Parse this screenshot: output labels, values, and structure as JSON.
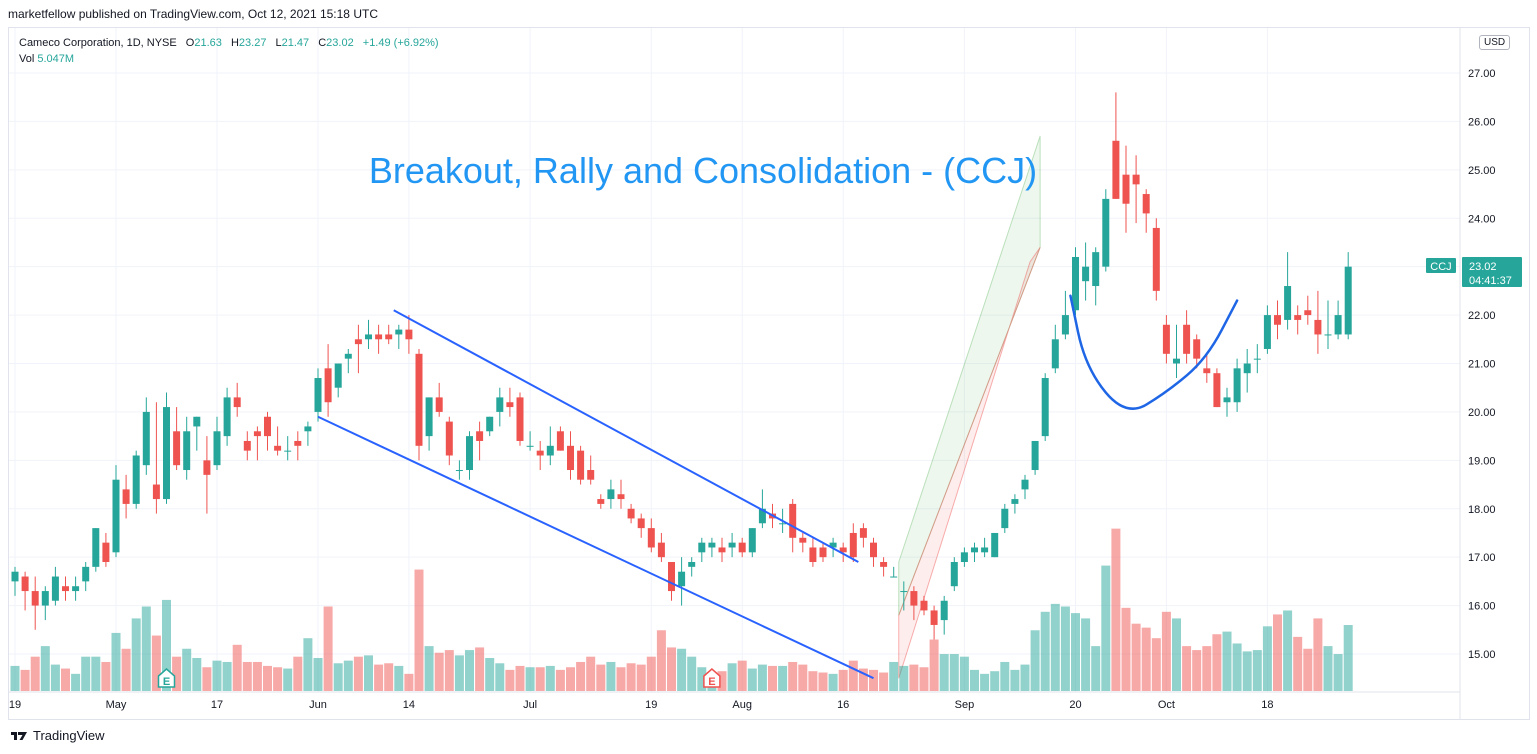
{
  "header": {
    "published_line": "marketfellow published on TradingView.com, Oct 12, 2021 15:18 UTC"
  },
  "legend": {
    "symbol": "Cameco Corporation, 1D, NYSE",
    "o_label": "O",
    "o_value": "21.63",
    "h_label": "H",
    "h_value": "23.27",
    "l_label": "L",
    "l_value": "21.47",
    "c_label": "C",
    "c_value": "23.02",
    "change": "+1.49 (+6.92%)",
    "vol_label": "Vol",
    "vol_value": "5.047M"
  },
  "currency": "USD",
  "footer": {
    "brand": "TradingView"
  },
  "colors": {
    "up": "#26a69a",
    "down": "#ef5350",
    "up_vol": "#26a69a",
    "down_vol": "#ef5350",
    "annotation_blue": "#2962ff",
    "title_blue": "#2196f3"
  },
  "chart_data": {
    "type": "candlestick",
    "title": "Breakout, Rally and Consolidation - (CCJ)",
    "ylim": [
      14.3,
      27.5
    ],
    "y_ticks": [
      "15.00",
      "16.00",
      "17.00",
      "18.00",
      "19.00",
      "20.00",
      "21.00",
      "22.00",
      "23.00",
      "24.00",
      "25.00",
      "26.00",
      "27.00"
    ],
    "x_ticks": [
      {
        "label": "19",
        "index": 0
      },
      {
        "label": "May",
        "index": 10
      },
      {
        "label": "17",
        "index": 20
      },
      {
        "label": "Jun",
        "index": 30
      },
      {
        "label": "14",
        "index": 39
      },
      {
        "label": "Jul",
        "index": 51
      },
      {
        "label": "19",
        "index": 63
      },
      {
        "label": "Aug",
        "index": 72
      },
      {
        "label": "16",
        "index": 82
      },
      {
        "label": "Sep",
        "index": 94
      },
      {
        "label": "20",
        "index": 105
      },
      {
        "label": "Oct",
        "index": 114
      },
      {
        "label": "18",
        "index": 124
      }
    ],
    "candles": [
      [
        16.5,
        16.8,
        16.2,
        16.7,
        1.9
      ],
      [
        16.6,
        16.7,
        15.9,
        16.3,
        1.6
      ],
      [
        16.3,
        16.6,
        15.5,
        16.0,
        2.6
      ],
      [
        16.0,
        16.4,
        15.7,
        16.3,
        3.4
      ],
      [
        16.1,
        16.8,
        16.0,
        16.6,
        2.0
      ],
      [
        16.4,
        16.6,
        16.1,
        16.3,
        1.7
      ],
      [
        16.3,
        16.6,
        16.1,
        16.4,
        1.3
      ],
      [
        16.5,
        16.9,
        16.3,
        16.8,
        2.6
      ],
      [
        16.8,
        17.6,
        16.7,
        17.6,
        2.6
      ],
      [
        17.3,
        17.5,
        16.8,
        16.9,
        2.2
      ],
      [
        17.1,
        18.9,
        17.0,
        18.6,
        4.4
      ],
      [
        18.4,
        18.7,
        17.8,
        18.1,
        3.2
      ],
      [
        18.1,
        19.2,
        18.0,
        19.1,
        5.5
      ],
      [
        18.9,
        20.3,
        18.7,
        20.0,
        6.4
      ],
      [
        18.5,
        20.2,
        17.9,
        18.2,
        4.2
      ],
      [
        18.2,
        20.4,
        18.1,
        20.1,
        6.9
      ],
      [
        19.6,
        20.1,
        18.8,
        18.9,
        2.6
      ],
      [
        18.8,
        19.9,
        18.6,
        19.6,
        3.2
      ],
      [
        19.7,
        19.9,
        19.2,
        19.9,
        2.5
      ],
      [
        19.0,
        19.5,
        17.9,
        18.7,
        1.8
      ],
      [
        18.9,
        19.9,
        18.8,
        19.6,
        2.3
      ],
      [
        19.5,
        20.5,
        19.3,
        20.3,
        2.2
      ],
      [
        20.3,
        20.6,
        19.9,
        20.1,
        3.5
      ],
      [
        19.4,
        19.6,
        19.0,
        19.2,
        2.2
      ],
      [
        19.6,
        19.7,
        19.0,
        19.5,
        2.2
      ],
      [
        19.9,
        20.0,
        19.2,
        19.5,
        1.9
      ],
      [
        19.3,
        19.7,
        19.1,
        19.2,
        1.8
      ],
      [
        19.2,
        19.5,
        19.0,
        19.2,
        1.7
      ],
      [
        19.4,
        19.6,
        19.0,
        19.3,
        2.6
      ],
      [
        19.6,
        19.8,
        19.3,
        19.7,
        4.0
      ],
      [
        20.0,
        20.9,
        19.8,
        20.7,
        2.5
      ],
      [
        20.9,
        21.4,
        19.9,
        20.2,
        6.4
      ],
      [
        20.5,
        21.0,
        20.3,
        21.0,
        2.1
      ],
      [
        21.1,
        21.3,
        20.8,
        21.2,
        2.3
      ],
      [
        21.5,
        21.8,
        20.8,
        21.4,
        2.6
      ],
      [
        21.5,
        21.9,
        21.3,
        21.6,
        2.7
      ],
      [
        21.6,
        21.8,
        21.2,
        21.5,
        2.0
      ],
      [
        21.6,
        21.8,
        21.4,
        21.5,
        2.1
      ],
      [
        21.6,
        21.8,
        21.3,
        21.7,
        1.9
      ],
      [
        21.7,
        22.0,
        21.2,
        21.5,
        1.3
      ],
      [
        21.2,
        21.3,
        19.0,
        19.3,
        9.2
      ],
      [
        19.5,
        20.3,
        19.2,
        20.3,
        3.4
      ],
      [
        20.3,
        20.6,
        19.9,
        20.0,
        2.9
      ],
      [
        19.8,
        19.9,
        18.9,
        19.1,
        3.1
      ],
      [
        18.8,
        19.0,
        18.6,
        18.8,
        2.7
      ],
      [
        18.8,
        19.6,
        18.6,
        19.5,
        3.1
      ],
      [
        19.6,
        19.8,
        19.0,
        19.4,
        3.3
      ],
      [
        19.6,
        19.9,
        19.5,
        19.9,
        2.5
      ],
      [
        20.0,
        20.5,
        19.7,
        20.3,
        2.1
      ],
      [
        20.2,
        20.5,
        19.9,
        20.1,
        1.6
      ],
      [
        20.3,
        20.4,
        19.3,
        19.4,
        1.9
      ],
      [
        19.3,
        19.6,
        19.2,
        19.3,
        1.8
      ],
      [
        19.2,
        19.4,
        18.8,
        19.1,
        1.8
      ],
      [
        19.1,
        19.7,
        18.9,
        19.3,
        1.9
      ],
      [
        19.6,
        19.7,
        19.2,
        19.2,
        1.6
      ],
      [
        19.3,
        19.6,
        18.6,
        18.8,
        1.8
      ],
      [
        19.2,
        19.3,
        18.5,
        18.6,
        2.2
      ],
      [
        18.8,
        19.1,
        18.5,
        18.6,
        2.6
      ],
      [
        18.2,
        18.3,
        18.0,
        18.1,
        2.0
      ],
      [
        18.2,
        18.6,
        18.0,
        18.4,
        2.2
      ],
      [
        18.3,
        18.6,
        18.0,
        18.2,
        1.8
      ],
      [
        18.0,
        18.1,
        17.7,
        17.8,
        2.1
      ],
      [
        17.8,
        17.9,
        17.4,
        17.6,
        2.0
      ],
      [
        17.6,
        17.8,
        17.1,
        17.2,
        2.6
      ],
      [
        17.3,
        17.5,
        16.9,
        17.0,
        4.6
      ],
      [
        16.9,
        16.9,
        16.1,
        16.3,
        3.3
      ],
      [
        16.4,
        17.0,
        16.0,
        16.7,
        3.2
      ],
      [
        16.8,
        17.0,
        16.6,
        16.9,
        2.6
      ],
      [
        17.1,
        17.4,
        16.9,
        17.3,
        1.8
      ],
      [
        17.2,
        17.4,
        17.0,
        17.3,
        1.2
      ],
      [
        17.2,
        17.4,
        16.9,
        17.1,
        1.5
      ],
      [
        17.2,
        17.5,
        17.0,
        17.3,
        2.1
      ],
      [
        17.3,
        17.4,
        17.0,
        17.1,
        2.3
      ],
      [
        17.1,
        17.6,
        17.0,
        17.6,
        1.7
      ],
      [
        17.7,
        18.4,
        17.6,
        18.0,
        2.0
      ],
      [
        17.9,
        18.1,
        17.6,
        17.8,
        1.9
      ],
      [
        17.7,
        18.0,
        17.5,
        17.7,
        1.9
      ],
      [
        18.1,
        18.2,
        17.1,
        17.4,
        2.2
      ],
      [
        17.4,
        17.5,
        17.1,
        17.3,
        2.0
      ],
      [
        17.2,
        17.4,
        16.8,
        16.9,
        1.5
      ],
      [
        17.2,
        17.3,
        16.9,
        17.0,
        1.4
      ],
      [
        17.2,
        17.4,
        17.0,
        17.3,
        1.3
      ],
      [
        17.2,
        17.3,
        16.9,
        17.1,
        1.6
      ],
      [
        17.5,
        17.7,
        16.9,
        17.0,
        2.3
      ],
      [
        17.6,
        17.7,
        17.2,
        17.4,
        1.7
      ],
      [
        17.3,
        17.4,
        16.8,
        17.0,
        1.6
      ],
      [
        16.9,
        17.0,
        16.6,
        16.8,
        1.4
      ],
      [
        16.6,
        16.8,
        16.6,
        16.6,
        2.2
      ],
      [
        16.3,
        16.5,
        15.9,
        16.3,
        1.9
      ],
      [
        16.3,
        16.4,
        15.7,
        16.0,
        2.0
      ],
      [
        16.1,
        16.2,
        15.8,
        15.9,
        1.8
      ],
      [
        15.9,
        16.0,
        15.3,
        15.6,
        3.9
      ],
      [
        15.7,
        16.2,
        15.4,
        16.1,
        2.8
      ],
      [
        16.4,
        17.0,
        16.3,
        16.9,
        2.8
      ],
      [
        16.9,
        17.2,
        16.8,
        17.1,
        2.6
      ],
      [
        17.1,
        17.3,
        16.9,
        17.2,
        1.6
      ],
      [
        17.1,
        17.4,
        17.0,
        17.2,
        1.3
      ],
      [
        17.0,
        17.5,
        17.0,
        17.5,
        1.5
      ],
      [
        17.6,
        18.1,
        17.5,
        18.0,
        2.2
      ],
      [
        18.1,
        18.3,
        17.9,
        18.2,
        1.6
      ],
      [
        18.4,
        18.7,
        18.2,
        18.6,
        2.0
      ],
      [
        18.8,
        19.4,
        18.7,
        19.4,
        4.6
      ],
      [
        19.5,
        20.8,
        19.4,
        20.7,
        6.0
      ],
      [
        20.9,
        21.8,
        20.8,
        21.5,
        6.6
      ],
      [
        21.6,
        22.5,
        21.5,
        22.0,
        6.4
      ],
      [
        22.1,
        23.4,
        22.0,
        23.2,
        5.9
      ],
      [
        22.7,
        23.5,
        22.3,
        23.0,
        5.5
      ],
      [
        22.6,
        23.4,
        22.2,
        23.3,
        3.4
      ],
      [
        23.0,
        24.6,
        22.9,
        24.4,
        9.5
      ],
      [
        25.6,
        26.6,
        24.4,
        24.4,
        12.3
      ],
      [
        24.9,
        25.5,
        23.7,
        24.3,
        6.3
      ],
      [
        24.9,
        25.3,
        23.9,
        24.7,
        5.1
      ],
      [
        24.5,
        24.6,
        23.7,
        24.1,
        4.8
      ],
      [
        23.8,
        24.0,
        22.3,
        22.5,
        4.0
      ],
      [
        21.8,
        22.0,
        21.0,
        21.2,
        6.0
      ],
      [
        21.0,
        21.8,
        20.7,
        21.1,
        5.5
      ],
      [
        21.8,
        22.1,
        21.0,
        21.2,
        3.4
      ],
      [
        21.5,
        21.6,
        20.9,
        21.1,
        3.1
      ],
      [
        20.9,
        21.2,
        20.6,
        20.8,
        3.4
      ],
      [
        20.8,
        20.9,
        20.1,
        20.1,
        4.3
      ],
      [
        20.2,
        20.5,
        19.9,
        20.3,
        4.5
      ],
      [
        20.2,
        21.1,
        20.0,
        20.9,
        3.6
      ],
      [
        20.8,
        21.3,
        20.4,
        21.0,
        3.0
      ],
      [
        21.1,
        21.4,
        20.8,
        21.1,
        3.1
      ],
      [
        21.3,
        22.2,
        21.2,
        22.0,
        4.9
      ],
      [
        22.0,
        22.3,
        21.5,
        21.8,
        5.8
      ],
      [
        21.9,
        23.3,
        21.7,
        22.6,
        6.1
      ],
      [
        22.0,
        22.2,
        21.6,
        21.9,
        4.1
      ],
      [
        22.1,
        22.4,
        21.8,
        22.0,
        3.2
      ],
      [
        21.9,
        22.5,
        21.2,
        21.6,
        5.5
      ],
      [
        21.6,
        22.3,
        21.3,
        21.6,
        3.4
      ],
      [
        21.6,
        22.3,
        21.5,
        22.0,
        2.8
      ],
      [
        21.6,
        23.3,
        21.5,
        23.0,
        5.0
      ]
    ],
    "annotations": [
      {
        "type": "line",
        "points": [
          [
            37.5,
            22.1
          ],
          [
            83.5,
            16.9
          ]
        ]
      },
      {
        "type": "line",
        "points": [
          [
            30.0,
            19.9
          ],
          [
            85.0,
            14.5
          ]
        ]
      },
      {
        "type": "curve",
        "points": [
          [
            104.5,
            22.4
          ],
          [
            106.0,
            20.9
          ],
          [
            110.0,
            19.9
          ],
          [
            114.0,
            20.4
          ],
          [
            118.0,
            21.1
          ],
          [
            121.0,
            22.3
          ]
        ]
      }
    ],
    "channels": [
      {
        "fill": "green",
        "points": [
          [
            87.5,
            16.9
          ],
          [
            101.5,
            25.7
          ],
          [
            101.5,
            23.4
          ],
          [
            87.5,
            15.8
          ]
        ]
      },
      {
        "fill": "red",
        "points": [
          [
            87.5,
            15.8
          ],
          [
            101.5,
            23.4
          ],
          [
            100.5,
            23.1
          ],
          [
            87.5,
            14.5
          ]
        ]
      }
    ],
    "event_markers": [
      {
        "label": "E",
        "index": 15,
        "kind": "earnings-up"
      },
      {
        "label": "E",
        "index": 69,
        "kind": "earnings-down"
      }
    ],
    "price_tag": {
      "symbol": "CCJ",
      "price": "23.02",
      "countdown": "04:41:37"
    }
  }
}
